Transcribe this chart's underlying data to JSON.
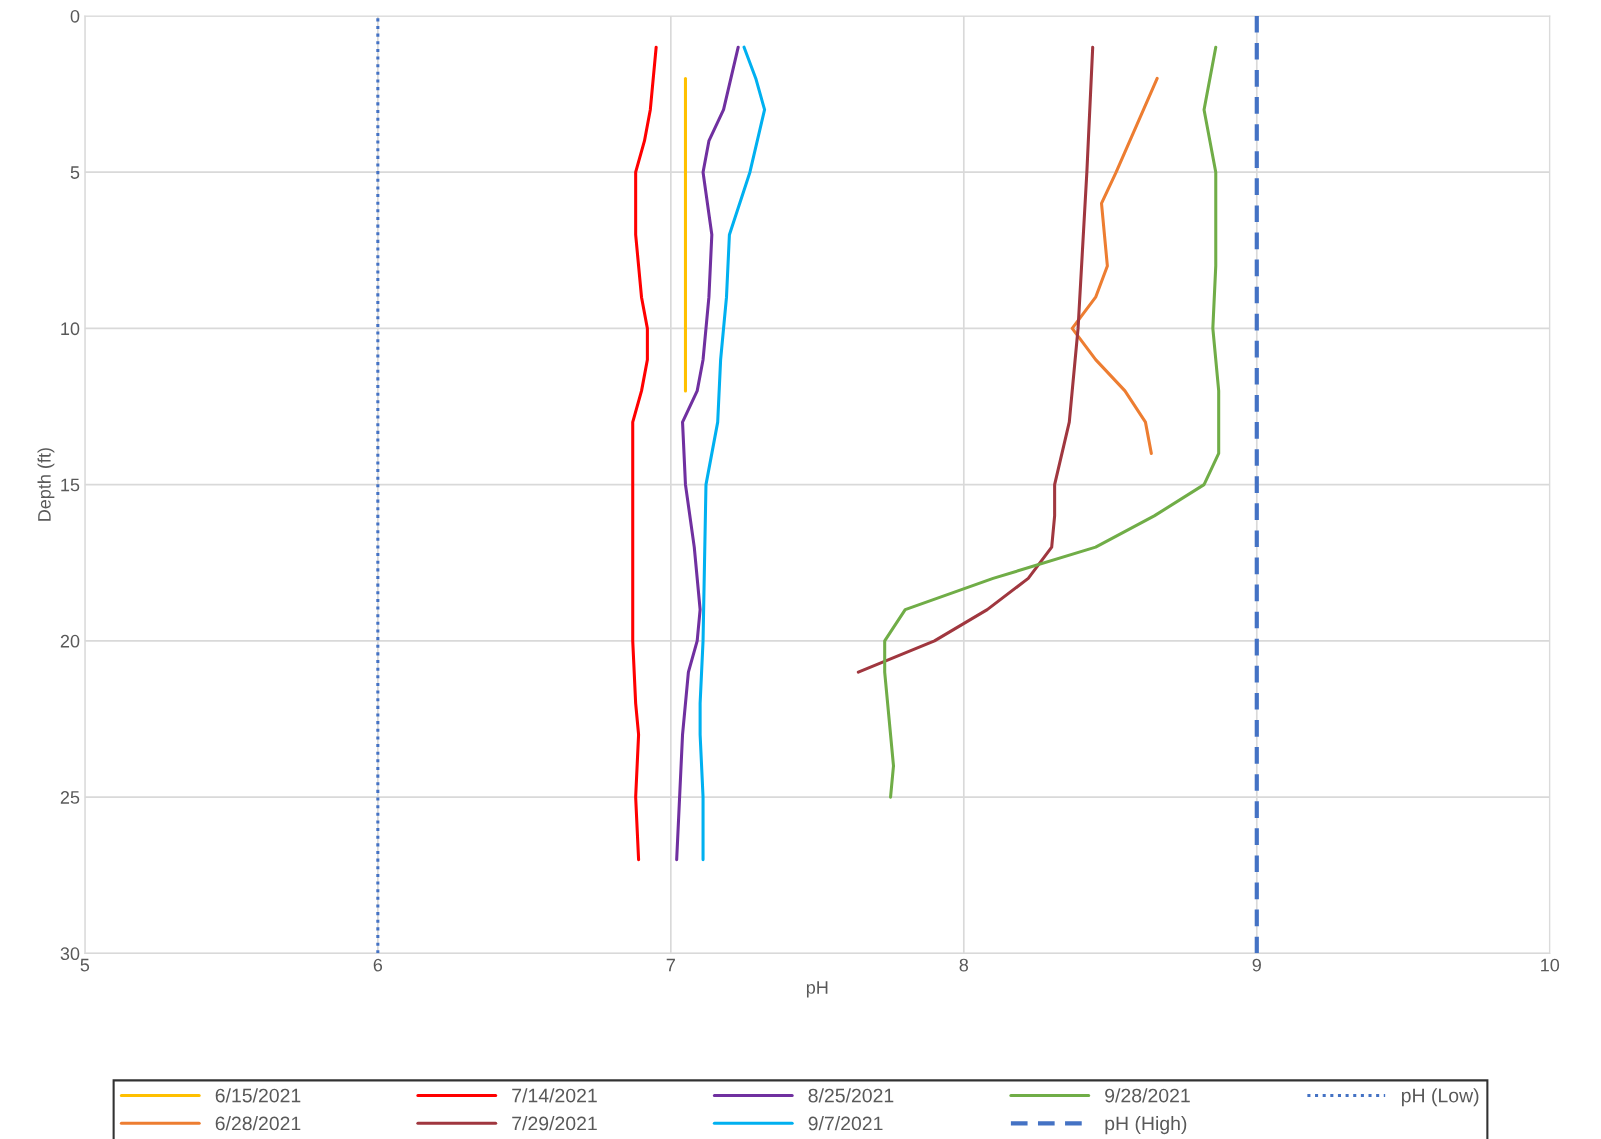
{
  "chart_data": {
    "type": "line",
    "xlabel": "pH",
    "ylabel": "Depth (ft)",
    "xlim": [
      5,
      10
    ],
    "xticks": [
      5,
      6,
      7,
      8,
      9,
      10
    ],
    "ylim": [
      30,
      0
    ],
    "yticks": [
      0,
      5,
      10,
      15,
      20,
      25,
      30
    ],
    "grid": true,
    "legend": "bottom",
    "marker": "none",
    "line_style": "solid",
    "series": [
      {
        "name": "6/15/2021",
        "color": "#ffc000",
        "x": [
          7.05,
          7.05
        ],
        "values": [
          2,
          12
        ]
      },
      {
        "name": "6/28/2021",
        "color": "#ed7d31",
        "x": [
          8.66,
          8.52,
          8.47,
          8.49,
          8.45,
          8.37,
          8.45,
          8.55,
          8.62,
          8.64
        ],
        "values": [
          2,
          5,
          6,
          8,
          9,
          10,
          11,
          12,
          13,
          14
        ]
      },
      {
        "name": "7/14/2021",
        "color": "#ff0000",
        "x": [
          6.95,
          6.93,
          6.91,
          6.88,
          6.88,
          6.9,
          6.92,
          6.92,
          6.9,
          6.87,
          6.87,
          6.87,
          6.88,
          6.89,
          6.88,
          6.89
        ],
        "values": [
          1,
          3,
          4,
          5,
          7,
          9,
          10,
          11,
          12,
          13,
          15,
          20,
          22,
          23,
          25,
          27
        ]
      },
      {
        "name": "7/29/2021",
        "color": "#a0373f",
        "x": [
          8.44,
          8.42,
          8.39,
          8.36,
          8.31,
          8.31,
          8.3,
          8.22,
          8.08,
          7.9,
          7.64
        ],
        "values": [
          1,
          5,
          10,
          13,
          15,
          16,
          17,
          18,
          19,
          20,
          21
        ]
      },
      {
        "name": "8/25/2021",
        "color": "#7030a0",
        "x": [
          7.23,
          7.18,
          7.13,
          7.11,
          7.14,
          7.13,
          7.11,
          7.09,
          7.04,
          7.05,
          7.08,
          7.1,
          7.09,
          7.06,
          7.04,
          7.03,
          7.02
        ],
        "values": [
          1,
          3,
          4,
          5,
          7,
          9,
          11,
          12,
          13,
          15,
          17,
          19,
          20,
          21,
          23,
          25,
          27
        ]
      },
      {
        "name": "9/7/2021",
        "color": "#00b0f0",
        "x": [
          7.25,
          7.29,
          7.32,
          7.27,
          7.2,
          7.19,
          7.17,
          7.16,
          7.14,
          7.12,
          7.11,
          7.1,
          7.1,
          7.11,
          7.11
        ],
        "values": [
          1,
          2,
          3,
          5,
          7,
          9,
          11,
          13,
          14,
          15,
          20,
          22,
          23,
          25,
          27
        ]
      },
      {
        "name": "9/28/2021",
        "color": "#70ad47",
        "x": [
          8.86,
          8.82,
          8.86,
          8.86,
          8.85,
          8.87,
          8.87,
          8.82,
          8.65,
          8.45,
          8.1,
          7.8,
          7.73,
          7.73,
          7.74,
          7.76,
          7.75
        ],
        "values": [
          1,
          3,
          5,
          8,
          10,
          12,
          14,
          15,
          16,
          17,
          18,
          19,
          20,
          21,
          22,
          24,
          25
        ]
      }
    ],
    "ref_lines": [
      {
        "axis": "x",
        "value": 9,
        "label": "pH (High)",
        "color": "#4472c4",
        "line_style": "dashed"
      },
      {
        "axis": "x",
        "value": 6,
        "label": "pH (Low)",
        "color": "#4472c4",
        "line_style": "dotted"
      }
    ]
  }
}
